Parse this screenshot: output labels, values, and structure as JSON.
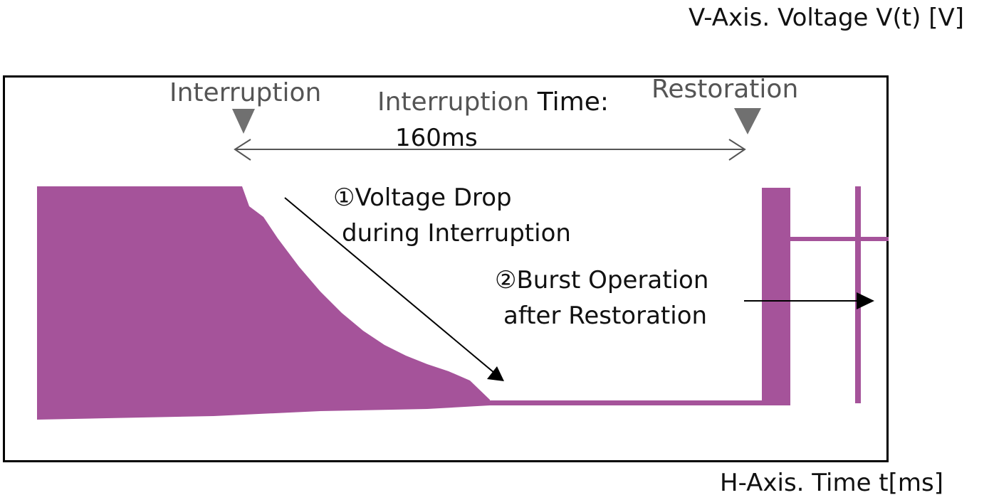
{
  "chart_data": {
    "type": "line",
    "title": "",
    "ylabel": "V-Axis. Voltage V(t) [V]",
    "xlabel": "H-Axis. Time t[ms]",
    "markers": {
      "interruption": "Interruption",
      "restoration": "Restoration",
      "interval_label_main": "Interruption",
      "interval_label_tail": " Time:",
      "interval_value": "160ms"
    },
    "annotations": [
      {
        "line1": "①Voltage Drop",
        "line2": "during Interruption"
      },
      {
        "line1": "②Burst Operation",
        "line2": "after Restoration"
      }
    ],
    "series": [
      {
        "color": "#a5539a",
        "description_points": []
      }
    ]
  },
  "colors": {
    "waveform": "#a5539a",
    "marker_gray": "#707070",
    "arrow": "#000000"
  }
}
